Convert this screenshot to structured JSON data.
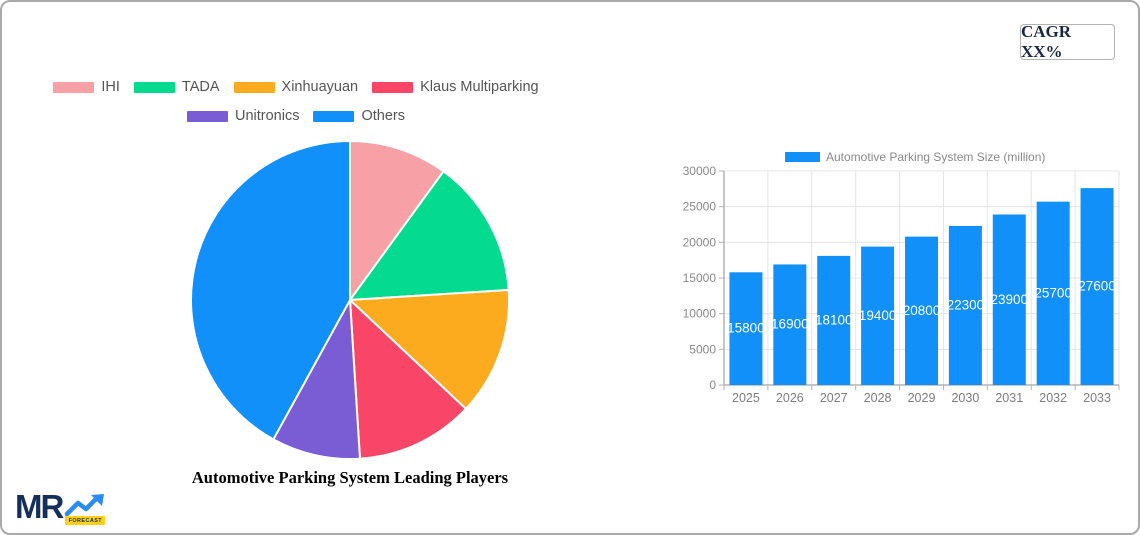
{
  "page": {
    "cagr_label": "CAGR XX%"
  },
  "logo": {
    "text": "MR",
    "badge": "FORECAST"
  },
  "theme": {
    "canvas_border": "#a9a9a9",
    "axis_color": "#b3b3b3",
    "grid_color": "#e5e5e5",
    "tick_text": "#8a8a8a",
    "legend_text": "#555555",
    "navy": "#14305a",
    "logo_blue": "#2a8cf0",
    "badge_yellow": "#ffd117"
  },
  "chart_data": [
    {
      "type": "pie",
      "title": "Automotive Parking System Leading Players",
      "labels": [
        "IHI",
        "TADA",
        "Xinhuayuan",
        "Klaus Multiparking",
        "Unitronics",
        "Others"
      ],
      "values_percent": [
        10,
        14,
        13,
        12,
        9,
        42
      ],
      "colors": [
        "#f7a1a6",
        "#04db90",
        "#fcab1f",
        "#f94667",
        "#7a5dd4",
        "#1090f8"
      ],
      "rotation": "starts at 12 o'clock, clockwise",
      "legend_position": "top",
      "legend_rows": [
        4,
        2
      ]
    },
    {
      "type": "bar",
      "legend_label": "Automotive Parking System Size (million)",
      "categories": [
        "2025",
        "2026",
        "2027",
        "2028",
        "2029",
        "2030",
        "2031",
        "2032",
        "2033"
      ],
      "values": [
        15800,
        16900,
        18100,
        19400,
        20800,
        22300,
        23900,
        25700,
        27600
      ],
      "bar_color": "#1090f8",
      "value_label_color": "#ffffff",
      "ylim": [
        0,
        30000
      ],
      "yticks": [
        0,
        5000,
        10000,
        15000,
        20000,
        25000,
        30000
      ],
      "grid": true,
      "legend_position": "top"
    }
  ]
}
